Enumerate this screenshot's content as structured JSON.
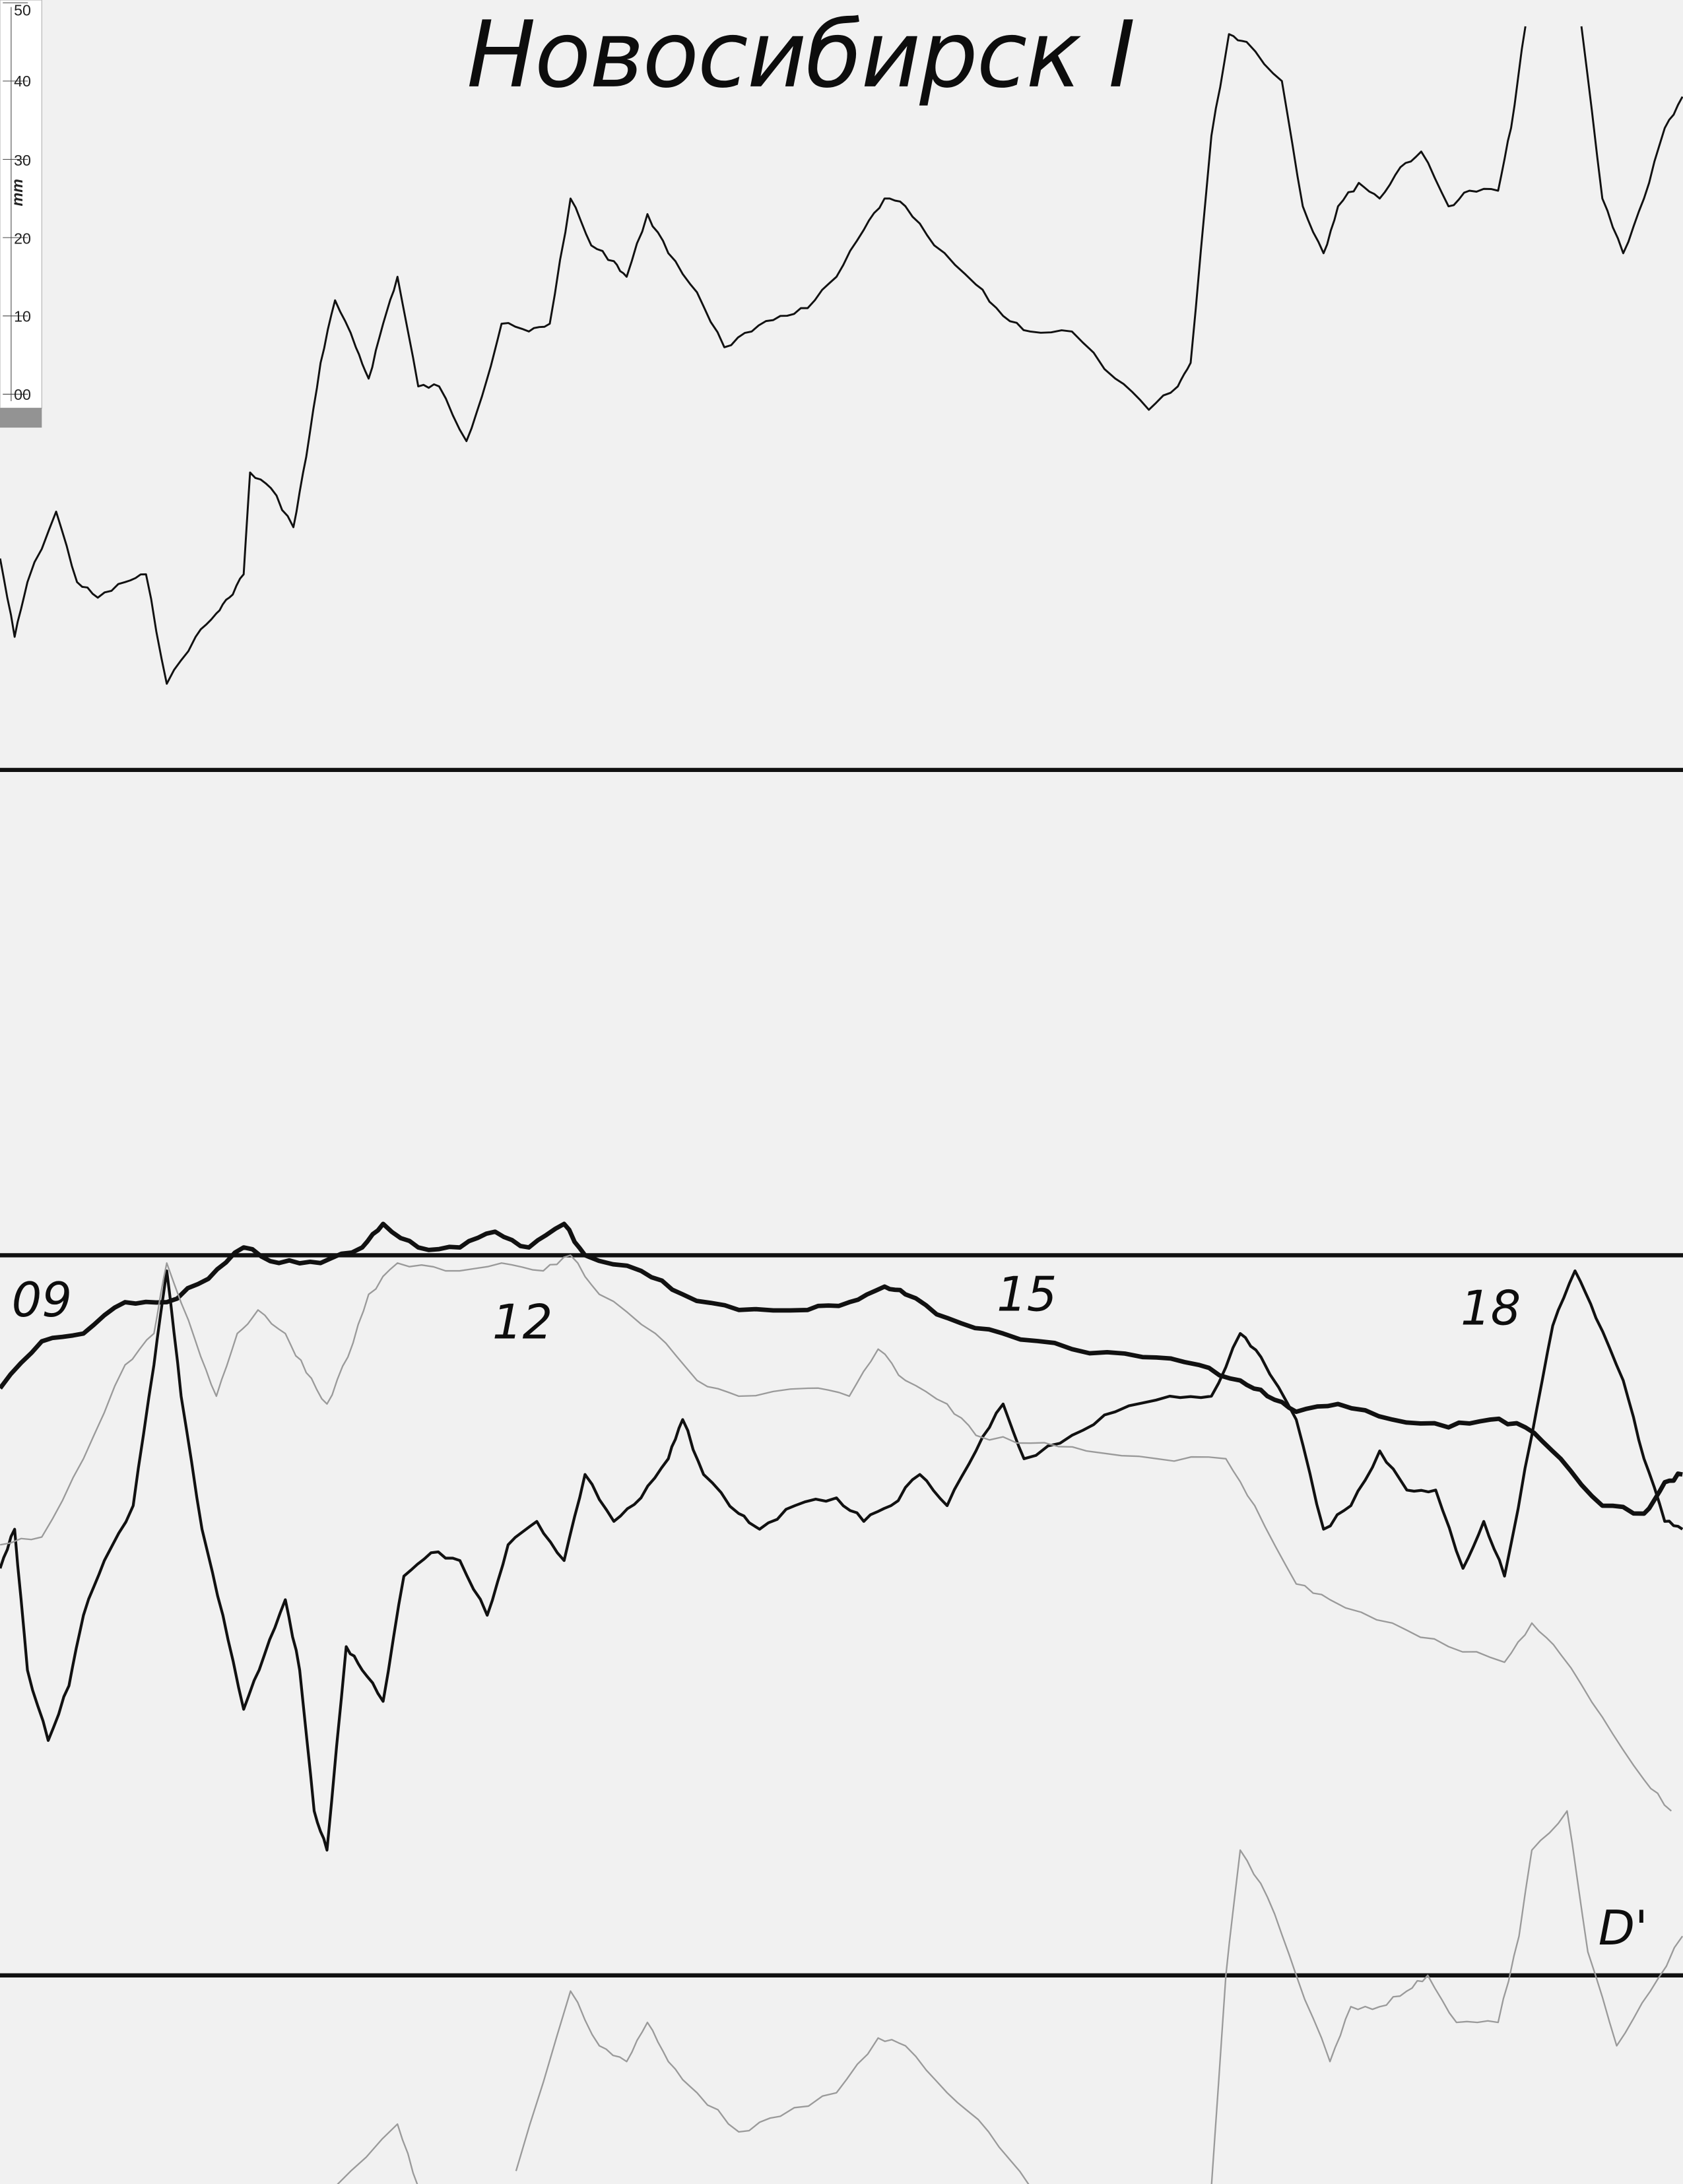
{
  "title": "Новосибирск I",
  "ruler": {
    "unit": "mm",
    "labels": [
      "50",
      "40",
      "30",
      "20",
      "10",
      "00"
    ]
  },
  "chart_data": {
    "type": "line",
    "title": "Новосибирск I",
    "xlabel": "",
    "ylabel": "mm",
    "x_unit": "hour",
    "y_unit": "mm",
    "xlim": [
      8.74,
      19.24
    ],
    "ylim": [
      -229,
      50
    ],
    "grid": false,
    "x_tick_labels": [
      {
        "hour": 9,
        "label": "09"
      },
      {
        "hour": 12,
        "label": "12"
      },
      {
        "hour": 15,
        "label": "15"
      },
      {
        "hour": 18,
        "label": "18"
      }
    ],
    "annotations": [
      {
        "text": "D'",
        "hour": 18.9,
        "mm": -197
      }
    ],
    "baselines_mm": [
      -48,
      -110,
      -202
    ],
    "colors": {
      "ink": "#111111",
      "faint": "#9a9a9a",
      "paper": "#f1f1f1"
    },
    "series": [
      {
        "style": "thin",
        "segments": [
          [
            [
              8.74,
              -21
            ],
            [
              8.83,
              -31
            ],
            [
              8.91,
              -24
            ],
            [
              9.09,
              -15
            ],
            [
              9.22,
              -24
            ],
            [
              9.35,
              -26
            ],
            [
              9.52,
              -24
            ],
            [
              9.65,
              -23
            ],
            [
              9.78,
              -37
            ],
            [
              9.96,
              -31
            ],
            [
              10.09,
              -28
            ],
            [
              10.17,
              -26
            ],
            [
              10.26,
              -23
            ],
            [
              10.3,
              -10
            ],
            [
              10.43,
              -12
            ],
            [
              10.57,
              -17
            ],
            [
              10.65,
              -8
            ],
            [
              10.74,
              4
            ],
            [
              10.83,
              12
            ],
            [
              10.96,
              6
            ],
            [
              11.04,
              2
            ],
            [
              11.13,
              9
            ],
            [
              11.22,
              15
            ],
            [
              11.35,
              1
            ],
            [
              11.48,
              1
            ],
            [
              11.65,
              -6
            ],
            [
              11.78,
              2
            ],
            [
              11.87,
              9
            ],
            [
              12.04,
              8
            ],
            [
              12.17,
              9
            ],
            [
              12.3,
              25
            ],
            [
              12.43,
              19
            ],
            [
              12.57,
              17
            ],
            [
              12.65,
              15
            ],
            [
              12.78,
              23
            ],
            [
              12.91,
              18
            ],
            [
              13.09,
              13
            ],
            [
              13.26,
              6
            ],
            [
              13.43,
              8
            ],
            [
              13.61,
              10
            ],
            [
              13.78,
              11
            ],
            [
              13.96,
              15
            ],
            [
              14.13,
              21
            ],
            [
              14.26,
              25
            ],
            [
              14.39,
              24
            ],
            [
              14.57,
              19
            ],
            [
              14.83,
              14
            ],
            [
              15.0,
              10
            ],
            [
              15.17,
              8
            ],
            [
              15.43,
              8
            ],
            [
              15.7,
              2
            ],
            [
              15.91,
              -2
            ],
            [
              16.09,
              1
            ],
            [
              16.17,
              4
            ],
            [
              16.3,
              33
            ],
            [
              16.41,
              46
            ],
            [
              16.52,
              45
            ],
            [
              16.74,
              40
            ],
            [
              16.87,
              24
            ],
            [
              17.0,
              18
            ],
            [
              17.09,
              24
            ],
            [
              17.22,
              27
            ],
            [
              17.35,
              25
            ],
            [
              17.48,
              29
            ],
            [
              17.61,
              31
            ],
            [
              17.78,
              24
            ],
            [
              17.91,
              26
            ],
            [
              18.09,
              26
            ],
            [
              18.17,
              34
            ],
            [
              18.26,
              47
            ]
          ],
          [
            [
              18.61,
              47
            ],
            [
              18.74,
              25
            ],
            [
              18.87,
              18
            ],
            [
              19.0,
              25
            ],
            [
              19.13,
              34
            ],
            [
              19.24,
              38
            ]
          ]
        ]
      },
      {
        "style": "thick",
        "segments": [
          [
            [
              8.74,
              -127
            ],
            [
              9.0,
              -121
            ],
            [
              9.26,
              -120
            ],
            [
              9.52,
              -116
            ],
            [
              9.78,
              -116
            ],
            [
              10.04,
              -113
            ],
            [
              10.26,
              -109
            ],
            [
              10.48,
              -111
            ],
            [
              10.74,
              -111
            ],
            [
              11.0,
              -109
            ],
            [
              11.13,
              -106
            ],
            [
              11.35,
              -109
            ],
            [
              11.61,
              -109
            ],
            [
              11.83,
              -107
            ],
            [
              12.04,
              -109
            ],
            [
              12.26,
              -106
            ],
            [
              12.39,
              -110
            ],
            [
              12.74,
              -112
            ],
            [
              13.0,
              -115
            ],
            [
              13.35,
              -117
            ],
            [
              13.78,
              -117
            ],
            [
              14.04,
              -116
            ],
            [
              14.26,
              -114
            ],
            [
              14.39,
              -115
            ],
            [
              14.65,
              -118
            ],
            [
              15.0,
              -120
            ],
            [
              15.43,
              -122
            ],
            [
              15.87,
              -123
            ],
            [
              16.22,
              -124
            ],
            [
              16.48,
              -126
            ],
            [
              16.65,
              -128
            ],
            [
              16.83,
              -130
            ],
            [
              17.09,
              -129
            ],
            [
              17.43,
              -131
            ],
            [
              17.78,
              -132
            ],
            [
              18.04,
              -131
            ],
            [
              18.26,
              -132
            ],
            [
              18.48,
              -136
            ],
            [
              18.74,
              -142
            ],
            [
              19.0,
              -143
            ],
            [
              19.13,
              -139
            ],
            [
              19.24,
              -138
            ]
          ]
        ]
      },
      {
        "style": "medium",
        "segments": [
          [
            [
              8.74,
              -150
            ],
            [
              8.83,
              -145
            ],
            [
              8.91,
              -163
            ],
            [
              9.04,
              -172
            ],
            [
              9.17,
              -165
            ],
            [
              9.26,
              -156
            ],
            [
              9.39,
              -149
            ],
            [
              9.57,
              -142
            ],
            [
              9.7,
              -124
            ],
            [
              9.78,
              -112
            ],
            [
              9.87,
              -128
            ],
            [
              10.0,
              -145
            ],
            [
              10.13,
              -156
            ],
            [
              10.26,
              -168
            ],
            [
              10.39,
              -161
            ],
            [
              10.52,
              -154
            ],
            [
              10.61,
              -163
            ],
            [
              10.7,
              -181
            ],
            [
              10.78,
              -186
            ],
            [
              10.9,
              -160
            ],
            [
              11.0,
              -163
            ],
            [
              11.13,
              -167
            ],
            [
              11.26,
              -151
            ],
            [
              11.43,
              -148
            ],
            [
              11.61,
              -149
            ],
            [
              11.78,
              -156
            ],
            [
              11.91,
              -147
            ],
            [
              12.09,
              -144
            ],
            [
              12.26,
              -149
            ],
            [
              12.39,
              -138
            ],
            [
              12.57,
              -144
            ],
            [
              12.74,
              -141
            ],
            [
              12.91,
              -136
            ],
            [
              13.0,
              -131
            ],
            [
              13.13,
              -138
            ],
            [
              13.35,
              -143
            ],
            [
              13.48,
              -145
            ],
            [
              13.7,
              -142
            ],
            [
              13.96,
              -141
            ],
            [
              14.13,
              -144
            ],
            [
              14.3,
              -142
            ],
            [
              14.48,
              -138
            ],
            [
              14.65,
              -142
            ],
            [
              14.83,
              -135
            ],
            [
              15.0,
              -129
            ],
            [
              15.13,
              -136
            ],
            [
              15.43,
              -133
            ],
            [
              15.7,
              -130
            ],
            [
              16.04,
              -128
            ],
            [
              16.3,
              -128
            ],
            [
              16.48,
              -120
            ],
            [
              16.61,
              -123
            ],
            [
              16.83,
              -131
            ],
            [
              17.0,
              -145
            ],
            [
              17.17,
              -142
            ],
            [
              17.35,
              -135
            ],
            [
              17.52,
              -140
            ],
            [
              17.7,
              -140
            ],
            [
              17.87,
              -150
            ],
            [
              18.0,
              -144
            ],
            [
              18.13,
              -151
            ],
            [
              18.3,
              -133
            ],
            [
              18.43,
              -119
            ],
            [
              18.57,
              -112
            ],
            [
              18.7,
              -118
            ],
            [
              18.87,
              -126
            ],
            [
              19.0,
              -136
            ],
            [
              19.13,
              -144
            ],
            [
              19.24,
              -145
            ]
          ]
        ]
      },
      {
        "style": "faint",
        "segments": [
          [
            [
              8.74,
              -147
            ],
            [
              9.0,
              -146
            ],
            [
              9.26,
              -136
            ],
            [
              9.52,
              -124
            ],
            [
              9.7,
              -120
            ],
            [
              9.78,
              -111
            ],
            [
              9.96,
              -121
            ],
            [
              10.09,
              -128
            ],
            [
              10.22,
              -120
            ],
            [
              10.35,
              -117
            ],
            [
              10.52,
              -120
            ],
            [
              10.65,
              -125
            ],
            [
              10.78,
              -129
            ],
            [
              10.91,
              -123
            ],
            [
              11.04,
              -115
            ],
            [
              11.22,
              -111
            ],
            [
              11.52,
              -112
            ],
            [
              11.87,
              -111
            ],
            [
              12.13,
              -112
            ],
            [
              12.3,
              -110
            ],
            [
              12.48,
              -115
            ],
            [
              12.83,
              -120
            ],
            [
              13.09,
              -126
            ],
            [
              13.35,
              -128
            ],
            [
              13.78,
              -127
            ],
            [
              14.04,
              -128
            ],
            [
              14.22,
              -122
            ],
            [
              14.39,
              -126
            ],
            [
              14.65,
              -129
            ],
            [
              14.83,
              -133
            ],
            [
              15.17,
              -134
            ],
            [
              15.52,
              -135
            ],
            [
              15.96,
              -136
            ],
            [
              16.39,
              -136
            ],
            [
              16.57,
              -142
            ],
            [
              16.83,
              -152
            ],
            [
              17.04,
              -154
            ],
            [
              17.43,
              -157
            ],
            [
              17.78,
              -160
            ],
            [
              18.13,
              -162
            ],
            [
              18.3,
              -157
            ],
            [
              18.48,
              -161
            ],
            [
              18.74,
              -169
            ],
            [
              19.0,
              -177
            ],
            [
              19.17,
              -181
            ]
          ]
        ]
      },
      {
        "style": "faint",
        "segments": [
          [
            [
              10.83,
              -229
            ],
            [
              11.22,
              -221
            ],
            [
              11.35,
              -229
            ]
          ],
          [
            [
              11.96,
              -227
            ],
            [
              12.3,
              -204
            ],
            [
              12.48,
              -211
            ],
            [
              12.65,
              -213
            ],
            [
              12.78,
              -208
            ],
            [
              12.91,
              -213
            ],
            [
              13.09,
              -217
            ],
            [
              13.35,
              -222
            ],
            [
              13.61,
              -220
            ],
            [
              13.96,
              -217
            ],
            [
              14.22,
              -210
            ],
            [
              14.39,
              -211
            ],
            [
              14.65,
              -217
            ],
            [
              14.91,
              -222
            ],
            [
              15.17,
              -229
            ]
          ],
          [
            [
              16.3,
              -229
            ],
            [
              16.39,
              -202
            ],
            [
              16.48,
              -186
            ],
            [
              16.65,
              -192
            ],
            [
              16.83,
              -202
            ],
            [
              17.04,
              -213
            ],
            [
              17.17,
              -206
            ],
            [
              17.35,
              -206
            ],
            [
              17.52,
              -204
            ],
            [
              17.65,
              -202
            ],
            [
              17.83,
              -208
            ],
            [
              18.09,
              -208
            ],
            [
              18.22,
              -197
            ],
            [
              18.3,
              -186
            ],
            [
              18.52,
              -181
            ],
            [
              18.65,
              -199
            ],
            [
              18.83,
              -211
            ],
            [
              19.04,
              -204
            ],
            [
              19.24,
              -197
            ]
          ]
        ]
      }
    ]
  }
}
